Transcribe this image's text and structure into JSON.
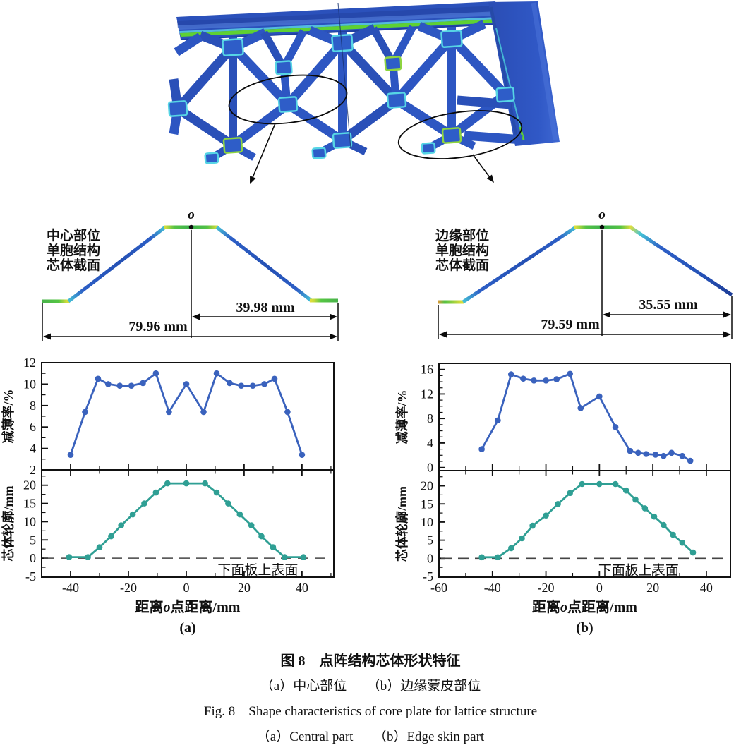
{
  "figure": {
    "caption_cn": "图 8　点阵结构芯体形状特征",
    "caption_sub_cn": "（a）中心部位　　（b）边缘蒙皮部位",
    "caption_en": "Fig. 8　Shape characteristics of core plate for lattice structure",
    "caption_sub_en": "（a）Central part　　（b）Edge skin part"
  },
  "profiles": [
    {
      "label_lines": [
        "中心部位",
        "单胞结构",
        "芯体截面"
      ],
      "origin_label": "o",
      "dim_half": "39.98 mm",
      "dim_full": "79.96 mm"
    },
    {
      "label_lines": [
        "边缘部位",
        "单胞结构",
        "芯体截面"
      ],
      "origin_label": "o",
      "dim_half": "35.55 mm",
      "dim_full": "79.59 mm"
    }
  ],
  "colors": {
    "series_blue": "#3a62bd",
    "series_teal": "#2f9f94",
    "lattice_blue": "#2c53bd",
    "stripe_green": "#5ed133",
    "node_cyan": "#56d5e5",
    "profile_green": "#4cbf45",
    "profile_yellow": "#e6e03a",
    "axis": "#111111"
  },
  "chart_data": [
    {
      "id": "a",
      "panel_label": "(a)",
      "xlabel": "距离o点距离/mm",
      "xlim": [
        -50,
        51
      ],
      "xticks": [
        -40,
        -20,
        0,
        20,
        40
      ],
      "x_minor_step": 10,
      "legend": "none",
      "grid": false,
      "top": {
        "type": "line",
        "ylabel": "减薄率/%",
        "ylim": [
          2,
          12
        ],
        "yticks": [
          2,
          4,
          6,
          8,
          10,
          12
        ],
        "y_minor_step": 1,
        "color": "#3a62bd",
        "x": [
          -40,
          -35,
          -30.5,
          -27,
          -23,
          -19,
          -15,
          -10.5,
          -6,
          0,
          6,
          10.5,
          15,
          19,
          23,
          27,
          30.5,
          35,
          40
        ],
        "y": [
          3.4,
          7.4,
          10.5,
          10.0,
          9.85,
          9.85,
          10.1,
          11.0,
          7.4,
          10.0,
          7.4,
          11.0,
          10.1,
          9.85,
          9.85,
          10.0,
          10.5,
          7.4,
          3.4
        ]
      },
      "bottom": {
        "type": "line",
        "ylabel": "芯体轮廓/mm",
        "ylim": [
          -5.2,
          24.2
        ],
        "yticks": [
          -5,
          0,
          5,
          10,
          15,
          20
        ],
        "y_minor_step": 2.5,
        "color": "#2f9f94",
        "x": [
          -40.5,
          -34,
          -30,
          -26,
          -22.5,
          -18.5,
          -14.5,
          -10.5,
          -6.5,
          0,
          6.5,
          10.5,
          14.5,
          18.5,
          22.5,
          26,
          30,
          34,
          40.5
        ],
        "y": [
          0.3,
          0.3,
          3,
          6,
          9,
          12,
          15,
          18,
          20.5,
          20.5,
          20.5,
          18,
          15,
          12,
          9,
          6,
          3,
          0.3,
          0.3
        ],
        "ref_line": {
          "y": 0,
          "label": "下面板上表面",
          "fx": 0.74
        }
      }
    },
    {
      "id": "b",
      "panel_label": "(b)",
      "xlabel": "距离o点距离/mm",
      "xlim": [
        -60,
        49
      ],
      "xticks": [
        -60,
        -40,
        -20,
        0,
        20,
        40
      ],
      "x_minor_step": 10,
      "legend": "none",
      "grid": false,
      "top": {
        "type": "line",
        "ylabel": "减薄率/%",
        "ylim": [
          -0.5,
          17
        ],
        "yticks": [
          0,
          4,
          8,
          12,
          16
        ],
        "y_minor_step": 1,
        "color": "#3a62bd",
        "x": [
          -44,
          -38,
          -33,
          -28.5,
          -24.5,
          -20,
          -16,
          -11,
          -7,
          0,
          6,
          11.5,
          14.5,
          17.5,
          21,
          24,
          27,
          31,
          34
        ],
        "y": [
          3.0,
          7.7,
          15.2,
          14.5,
          14.2,
          14.2,
          14.4,
          15.3,
          9.7,
          11.6,
          6.6,
          2.7,
          2.4,
          2.2,
          2.1,
          1.9,
          2.4,
          1.9,
          1.1
        ]
      },
      "bottom": {
        "type": "line",
        "ylabel": "芯体轮廓/mm",
        "ylim": [
          -5.2,
          24.2
        ],
        "yticks": [
          -5,
          0,
          5,
          10,
          15,
          20
        ],
        "y_minor_step": 2.5,
        "color": "#2f9f94",
        "x": [
          -44,
          -38,
          -33,
          -29,
          -25,
          -20,
          -15.5,
          -11,
          -6.5,
          0,
          6,
          10,
          13.5,
          17,
          20.5,
          24,
          27.5,
          31,
          35
        ],
        "y": [
          0.3,
          0.3,
          2.8,
          5.5,
          9.0,
          11.8,
          15.0,
          18.0,
          20.5,
          20.5,
          20.5,
          18.7,
          16.2,
          13.8,
          11.5,
          9.2,
          6.5,
          4.3,
          1.6
        ],
        "ref_line": {
          "y": 0,
          "label": "下面板上表面",
          "fx": 0.685
        }
      }
    }
  ]
}
